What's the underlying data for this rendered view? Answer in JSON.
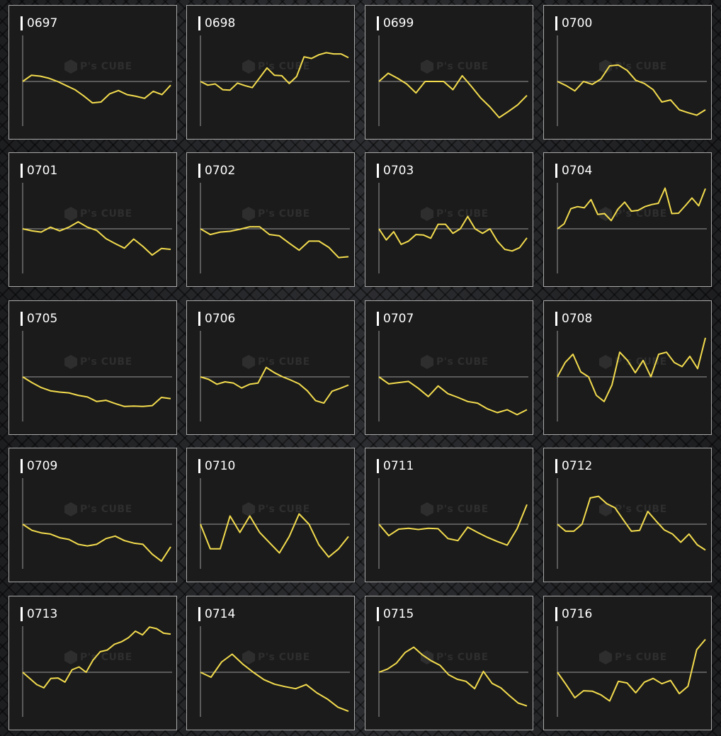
{
  "watermark": {
    "text": "P's CUBE",
    "icon": "cube-logo-icon"
  },
  "colors": {
    "line": "#f3dc4e",
    "baseline": "#9a9a9a",
    "axis": "#9a9a9a",
    "panel_bg": "#1b1b1b",
    "panel_border": "#a9a9a9"
  },
  "chart_data": [
    {
      "type": "line",
      "title": "0697",
      "ylim": [
        -1,
        1
      ],
      "values": [
        0.0,
        0.15,
        0.13,
        0.08,
        0.0,
        -0.1,
        -0.2,
        -0.35,
        -0.52,
        -0.5,
        -0.3,
        -0.22,
        -0.32,
        -0.36,
        -0.41,
        -0.24,
        -0.32,
        -0.09
      ]
    },
    {
      "type": "line",
      "title": "0698",
      "ylim": [
        -1,
        1
      ],
      "values": [
        0.0,
        -0.09,
        -0.06,
        -0.2,
        -0.21,
        -0.04,
        -0.1,
        -0.15,
        0.09,
        0.33,
        0.15,
        0.14,
        -0.05,
        0.12,
        0.6,
        0.56,
        0.65,
        0.7,
        0.67,
        0.67,
        0.58
      ]
    },
    {
      "type": "line",
      "title": "0699",
      "ylim": [
        -1,
        1
      ],
      "values": [
        0.0,
        0.2,
        0.08,
        -0.06,
        -0.28,
        0.0,
        0.0,
        0.0,
        -0.2,
        0.14,
        -0.12,
        -0.4,
        -0.62,
        -0.88,
        -0.73,
        -0.57,
        -0.34
      ]
    },
    {
      "type": "line",
      "title": "0700",
      "ylim": [
        -1,
        1
      ],
      "values": [
        0.0,
        -0.1,
        -0.23,
        0.0,
        -0.07,
        0.06,
        0.38,
        0.4,
        0.27,
        0.03,
        -0.05,
        -0.2,
        -0.5,
        -0.45,
        -0.69,
        -0.76,
        -0.82,
        -0.69
      ]
    },
    {
      "type": "line",
      "title": "0701",
      "ylim": [
        -1,
        1
      ],
      "values": [
        0.0,
        -0.05,
        -0.08,
        0.04,
        -0.05,
        0.04,
        0.17,
        0.04,
        -0.04,
        -0.24,
        -0.36,
        -0.47,
        -0.25,
        -0.43,
        -0.64,
        -0.48,
        -0.5
      ]
    },
    {
      "type": "line",
      "title": "0702",
      "ylim": [
        -1,
        1
      ],
      "values": [
        0.0,
        -0.14,
        -0.08,
        -0.06,
        -0.01,
        0.05,
        0.05,
        -0.14,
        -0.17,
        -0.35,
        -0.52,
        -0.3,
        -0.3,
        -0.45,
        -0.7,
        -0.68
      ]
    },
    {
      "type": "line",
      "title": "0703",
      "ylim": [
        -1,
        1
      ],
      "values": [
        0.0,
        -0.27,
        -0.07,
        -0.38,
        -0.3,
        -0.14,
        -0.15,
        -0.23,
        0.11,
        0.11,
        -0.11,
        0.0,
        0.3,
        0.0,
        -0.11,
        0.0,
        -0.3,
        -0.5,
        -0.54,
        -0.46,
        -0.22
      ]
    },
    {
      "type": "line",
      "title": "0704",
      "ylim": [
        -1,
        1
      ],
      "values": [
        0.0,
        0.12,
        0.49,
        0.54,
        0.51,
        0.71,
        0.35,
        0.37,
        0.2,
        0.48,
        0.65,
        0.43,
        0.45,
        0.54,
        0.59,
        0.62,
        0.99,
        0.37,
        0.38,
        0.56,
        0.75,
        0.56,
        0.98
      ]
    },
    {
      "type": "line",
      "title": "0705",
      "ylim": [
        -1,
        1
      ],
      "values": [
        0.0,
        -0.14,
        -0.26,
        -0.34,
        -0.37,
        -0.39,
        -0.45,
        -0.49,
        -0.6,
        -0.57,
        -0.65,
        -0.72,
        -0.71,
        -0.72,
        -0.7,
        -0.5,
        -0.53
      ]
    },
    {
      "type": "line",
      "title": "0706",
      "ylim": [
        -1,
        1
      ],
      "values": [
        0.0,
        -0.06,
        -0.18,
        -0.12,
        -0.15,
        -0.27,
        -0.18,
        -0.15,
        0.23,
        0.1,
        0.0,
        -0.08,
        -0.17,
        -0.34,
        -0.58,
        -0.64,
        -0.35,
        -0.28,
        -0.2
      ]
    },
    {
      "type": "line",
      "title": "0707",
      "ylim": [
        -1,
        1
      ],
      "values": [
        0.0,
        -0.17,
        -0.14,
        -0.11,
        -0.28,
        -0.48,
        -0.22,
        -0.41,
        -0.5,
        -0.6,
        -0.64,
        -0.78,
        -0.87,
        -0.8,
        -0.92,
        -0.8
      ]
    },
    {
      "type": "line",
      "title": "0708",
      "ylim": [
        -1,
        1
      ],
      "values": [
        0.0,
        0.35,
        0.55,
        0.12,
        0.0,
        -0.45,
        -0.6,
        -0.2,
        0.6,
        0.4,
        0.1,
        0.4,
        0.0,
        0.55,
        0.6,
        0.35,
        0.25,
        0.5,
        0.2,
        0.95
      ]
    },
    {
      "type": "line",
      "title": "0709",
      "ylim": [
        -1,
        1
      ],
      "values": [
        0.0,
        -0.15,
        -0.21,
        -0.24,
        -0.33,
        -0.37,
        -0.49,
        -0.53,
        -0.49,
        -0.35,
        -0.29,
        -0.4,
        -0.46,
        -0.49,
        -0.73,
        -0.9,
        -0.55
      ]
    },
    {
      "type": "line",
      "title": "0710",
      "ylim": [
        -1,
        1
      ],
      "values": [
        0.0,
        -0.6,
        -0.6,
        0.2,
        -0.2,
        0.2,
        -0.2,
        -0.45,
        -0.7,
        -0.3,
        0.25,
        0.0,
        -0.5,
        -0.8,
        -0.6,
        -0.3
      ]
    },
    {
      "type": "line",
      "title": "0711",
      "ylim": [
        -1,
        1
      ],
      "values": [
        0.0,
        -0.28,
        -0.12,
        -0.1,
        -0.13,
        -0.1,
        -0.11,
        -0.35,
        -0.4,
        -0.07,
        -0.2,
        -0.32,
        -0.42,
        -0.51,
        -0.11,
        0.48
      ]
    },
    {
      "type": "line",
      "title": "0712",
      "ylim": [
        -1,
        1
      ],
      "values": [
        0.0,
        -0.17,
        -0.17,
        0.0,
        0.64,
        0.68,
        0.5,
        0.4,
        0.11,
        -0.17,
        -0.15,
        0.31,
        0.08,
        -0.14,
        -0.24,
        -0.44,
        -0.24,
        -0.5,
        -0.63
      ]
    },
    {
      "type": "line",
      "title": "0713",
      "ylim": [
        -1,
        1
      ],
      "values": [
        0.0,
        -0.15,
        -0.3,
        -0.38,
        -0.15,
        -0.14,
        -0.24,
        0.06,
        0.13,
        0.0,
        0.3,
        0.5,
        0.54,
        0.68,
        0.74,
        0.84,
        1.0,
        0.91,
        1.1,
        1.06,
        0.95,
        0.93
      ]
    },
    {
      "type": "line",
      "title": "0714",
      "ylim": [
        -1,
        1
      ],
      "values": [
        0.0,
        -0.12,
        0.25,
        0.44,
        0.2,
        0.0,
        -0.18,
        -0.29,
        -0.35,
        -0.4,
        -0.3,
        -0.5,
        -0.65,
        -0.85,
        -0.95
      ]
    },
    {
      "type": "line",
      "title": "0715",
      "ylim": [
        -1,
        1
      ],
      "values": [
        0.0,
        0.08,
        0.22,
        0.48,
        0.61,
        0.42,
        0.28,
        0.17,
        -0.06,
        -0.17,
        -0.22,
        -0.4,
        0.02,
        -0.27,
        -0.38,
        -0.57,
        -0.75,
        -0.82
      ]
    },
    {
      "type": "line",
      "title": "0716",
      "ylim": [
        -1,
        1
      ],
      "values": [
        0.0,
        -0.3,
        -0.62,
        -0.45,
        -0.46,
        -0.55,
        -0.7,
        -0.22,
        -0.26,
        -0.5,
        -0.24,
        -0.15,
        -0.28,
        -0.2,
        -0.52,
        -0.34,
        0.55,
        0.8
      ]
    }
  ]
}
